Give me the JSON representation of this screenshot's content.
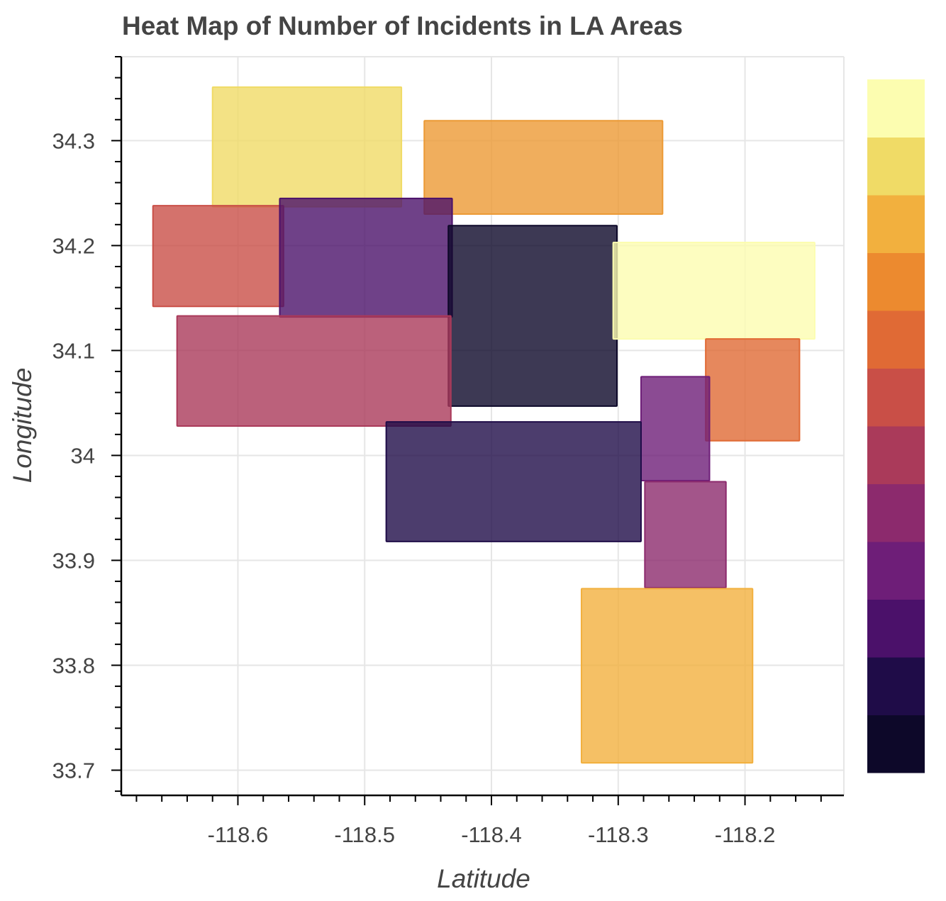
{
  "chart_data": {
    "type": "heatmap",
    "title": "Heat Map of Number of Incidents in LA Areas",
    "xlabel": "Latitude",
    "ylabel": "Longitude",
    "xlim": [
      -118.692,
      -118.122
    ],
    "ylim": [
      33.676,
      34.38
    ],
    "x_ticks": [
      -118.6,
      -118.5,
      -118.4,
      -118.3,
      -118.2
    ],
    "x_tick_labels": [
      "-118.6",
      "-118.5",
      "-118.4",
      "-118.3",
      "-118.2"
    ],
    "y_ticks": [
      33.7,
      33.8,
      33.9,
      34.0,
      34.1,
      34.2,
      34.3
    ],
    "y_tick_labels": [
      "33.7",
      "33.8",
      "33.9",
      "34",
      "34.1",
      "34.2",
      "34.3"
    ],
    "grid": true,
    "colorbar": {
      "position": "right",
      "palette": [
        "#0d0829",
        "#1f0c48",
        "#4b116a",
        "#6e1e78",
        "#8c2a6d",
        "#aa3a5a",
        "#c94f47",
        "#e06a35",
        "#ec8a2f",
        "#f2b03e",
        "#f0db66",
        "#fcfdb0"
      ]
    },
    "areas": [
      {
        "x0": -118.62,
        "x1": -118.471,
        "y0": 34.237,
        "y1": 34.351,
        "color": "#f0db66"
      },
      {
        "x0": -118.453,
        "x1": -118.265,
        "y0": 34.23,
        "y1": 34.319,
        "color": "#ec9a35"
      },
      {
        "x0": -118.667,
        "x1": -118.564,
        "y0": 34.142,
        "y1": 34.238,
        "color": "#c94f47"
      },
      {
        "x0": -118.567,
        "x1": -118.431,
        "y0": 34.132,
        "y1": 34.245,
        "color": "#4b116a"
      },
      {
        "x0": -118.434,
        "x1": -118.301,
        "y0": 34.047,
        "y1": 34.219,
        "color": "#0d0829"
      },
      {
        "x0": -118.304,
        "x1": -118.145,
        "y0": 34.111,
        "y1": 34.203,
        "color": "#fcfdb0"
      },
      {
        "x0": -118.648,
        "x1": -118.432,
        "y0": 34.028,
        "y1": 34.133,
        "color": "#aa3a5a"
      },
      {
        "x0": -118.231,
        "x1": -118.157,
        "y0": 34.014,
        "y1": 34.111,
        "color": "#e06a35"
      },
      {
        "x0": -118.282,
        "x1": -118.228,
        "y0": 33.976,
        "y1": 34.075,
        "color": "#6e1e78"
      },
      {
        "x0": -118.483,
        "x1": -118.282,
        "y0": 33.918,
        "y1": 34.032,
        "color": "#1f0c48"
      },
      {
        "x0": -118.279,
        "x1": -118.215,
        "y0": 33.874,
        "y1": 33.975,
        "color": "#8c2a6d"
      },
      {
        "x0": -118.329,
        "x1": -118.194,
        "y0": 33.707,
        "y1": 33.873,
        "color": "#f2b03e"
      }
    ]
  }
}
